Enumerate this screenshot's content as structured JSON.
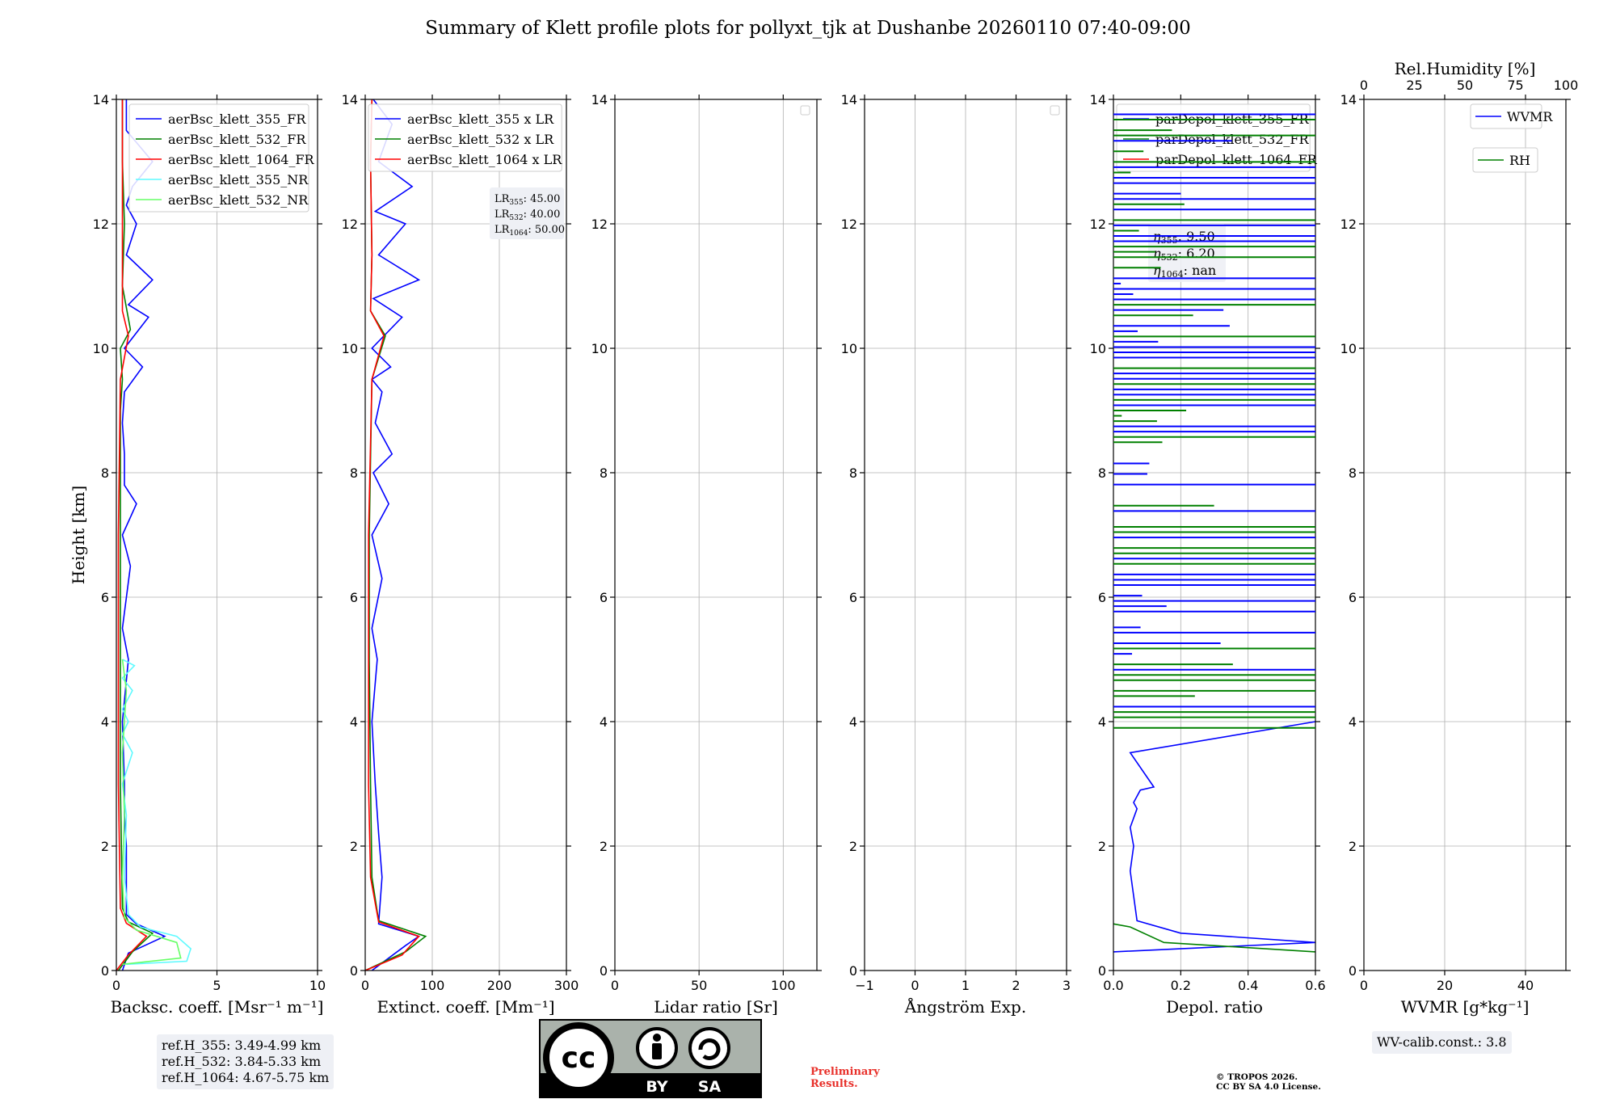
{
  "title": "Summary of Klett profile plots for pollyxt_tjk at Dushanbe 20260110 07:40-09:00",
  "y_label": "Height [km]",
  "y_ticks": [
    "0",
    "2",
    "4",
    "6",
    "8",
    "10",
    "12",
    "14"
  ],
  "panels": [
    {
      "xlabel": "Backsc. coeff. [Msr⁻¹ m⁻¹]",
      "xlim": [
        0,
        10
      ],
      "ticks": [
        "0",
        "5",
        "10"
      ],
      "tick_values": [
        0,
        5,
        10
      ],
      "legend": [
        {
          "label": "aerBsc_klett_355_FR",
          "color": "#0000ff"
        },
        {
          "label": "aerBsc_klett_532_FR",
          "color": "#008000"
        },
        {
          "label": "aerBsc_klett_1064_FR",
          "color": "#ff0000"
        },
        {
          "label": "aerBsc_klett_355_NR",
          "color": "#5ffaff"
        },
        {
          "label": "aerBsc_klett_532_NR",
          "color": "#66ff66"
        }
      ]
    },
    {
      "xlabel": "Extinct. coeff. [Mm⁻¹]",
      "xlim": [
        0,
        300
      ],
      "ticks": [
        "0",
        "100",
        "200",
        "300"
      ],
      "tick_values": [
        0,
        100,
        200,
        300
      ],
      "legend": [
        {
          "label": "aerBsc_klett_355 x LR",
          "color": "#0000ff"
        },
        {
          "label": "aerBsc_klett_532 x LR",
          "color": "#008000"
        },
        {
          "label": "aerBsc_klett_1064 x LR",
          "color": "#ff0000"
        }
      ],
      "lr_box": [
        {
          "base": "LR",
          "sub": "355",
          "value": ": 45.00"
        },
        {
          "base": "LR",
          "sub": "532",
          "value": ": 40.00"
        },
        {
          "base": "LR",
          "sub": "1064",
          "value": ": 50.00"
        }
      ]
    },
    {
      "xlabel": "Lidar ratio [Sr]",
      "xlim": [
        0,
        120
      ],
      "ticks": [
        "0",
        "50",
        "100"
      ],
      "tick_values": [
        0,
        50,
        100
      ],
      "legend": []
    },
    {
      "xlabel": "Ångström Exp.",
      "xlim": [
        -1,
        3
      ],
      "ticks": [
        "−1",
        "0",
        "1",
        "2",
        "3"
      ],
      "tick_values": [
        -1,
        0,
        1,
        2,
        3
      ],
      "legend": []
    },
    {
      "xlabel": "Depol. ratio",
      "xlim": [
        0,
        0.6
      ],
      "ticks": [
        "0.0",
        "0.2",
        "0.4",
        "0.6"
      ],
      "tick_values": [
        0,
        0.2,
        0.4,
        0.6
      ],
      "legend": [
        {
          "label": "parDepol_klett_355_FR",
          "color": "#0000ff"
        },
        {
          "label": "parDepol_klett_532_FR",
          "color": "#008000"
        },
        {
          "label": "parDepol_klett_1064_FR",
          "color": "#ff0000"
        }
      ],
      "eta_box": [
        {
          "sub": "355",
          "value": ": 9.50"
        },
        {
          "sub": "532",
          "value": ": 6.20"
        },
        {
          "sub": "1064",
          "value": ": nan"
        }
      ]
    },
    {
      "xlabel": "WVMR [g*kg⁻¹]",
      "xlim": [
        0,
        50
      ],
      "ticks": [
        "0",
        "20",
        "40"
      ],
      "tick_values": [
        0,
        20,
        40
      ],
      "legend": [
        {
          "label": "WVMR",
          "color": "#0000ff"
        },
        {
          "label": "RH",
          "color": "#008000"
        }
      ],
      "top_axis": {
        "label": "Rel.Humidity [%]",
        "ticks": [
          "0",
          "25",
          "50",
          "75",
          "100"
        ],
        "tick_values": [
          0,
          25,
          50,
          75,
          100
        ]
      }
    }
  ],
  "ref_heights": [
    "ref.H_355: 3.49-4.99 km",
    "ref.H_532: 3.84-5.33 km",
    "ref.H_1064: 4.67-5.75 km"
  ],
  "wv_calib": "WV-calib.const.: 3.8",
  "license_logo": {
    "badge": "cc",
    "by": "BY",
    "sa": "SA"
  },
  "preliminary": [
    "Preliminary",
    "Results."
  ],
  "copyright": [
    "© TROPOS 2026.",
    "CC BY SA 4.0 License."
  ],
  "chart_data": [
    {
      "type": "line",
      "panel": "Backscatter",
      "ylim": [
        0,
        14
      ],
      "xlim": [
        0,
        10
      ],
      "series": [
        {
          "name": "aerBsc_klett_355_FR",
          "x": [
            0.3,
            0.6,
            2.4,
            1.0,
            0.5,
            0.5,
            0.5,
            0.4,
            0.4,
            0.3,
            0.6,
            0.3,
            0.7,
            0.3,
            1.0,
            0.4,
            0.4,
            0.3,
            0.4,
            1.3,
            0.4,
            1.6,
            0.6,
            1.8,
            0.5,
            1.0,
            0.5,
            0.8,
            1.8,
            0.5,
            0.5
          ],
          "y": [
            0,
            0.28,
            0.55,
            0.75,
            0.9,
            1.5,
            2,
            2.5,
            3,
            4,
            5,
            5.5,
            6.5,
            7,
            7.5,
            7.8,
            8.3,
            8.8,
            9.3,
            9.7,
            10,
            10.5,
            10.7,
            11.1,
            11.5,
            12.0,
            12.3,
            12.6,
            13.0,
            13.5,
            14
          ]
        },
        {
          "name": "aerBsc_klett_532_FR",
          "x": [
            0.1,
            0.8,
            1.8,
            0.6,
            0.3,
            0.2,
            0.2,
            0.2,
            0.2,
            0.3,
            0.2,
            0.7,
            0.3,
            0.4,
            0.3,
            0.3
          ],
          "y": [
            0,
            0.3,
            0.6,
            0.78,
            1,
            3,
            5,
            7,
            9,
            9.5,
            10,
            10.3,
            11,
            12,
            13,
            14
          ]
        },
        {
          "name": "aerBsc_klett_1064_FR",
          "x": [
            0.0,
            0.6,
            1.5,
            0.5,
            0.2,
            0.1,
            0.1,
            0.1,
            0.2,
            0.6,
            0.3,
            0.3,
            0.3,
            0.3
          ],
          "y": [
            0,
            0.25,
            0.55,
            0.76,
            1,
            3,
            5,
            7,
            9.5,
            10.2,
            10.6,
            11.5,
            13,
            14
          ]
        },
        {
          "name": "aerBsc_klett_355_NR",
          "x": [
            0.5,
            3.5,
            3.7,
            3.0,
            1.2,
            0.6,
            0.4,
            0.5,
            0.3,
            0.8,
            0.3,
            0.6,
            0.3,
            0.8,
            0.3,
            0.9,
            0.3
          ],
          "y": [
            0.1,
            0.15,
            0.35,
            0.55,
            0.7,
            0.9,
            1.5,
            2.5,
            3,
            3.5,
            3.8,
            4.0,
            4.2,
            4.5,
            4.7,
            4.9,
            5.0
          ]
        },
        {
          "name": "aerBsc_klett_532_NR",
          "x": [
            0.3,
            3.2,
            3.0,
            1.0,
            0.4,
            0.3,
            0.4,
            0.3,
            0.5,
            0.3
          ],
          "y": [
            0.1,
            0.2,
            0.45,
            0.65,
            0.85,
            1.5,
            2.5,
            3.5,
            4.5,
            5.0
          ]
        }
      ]
    },
    {
      "type": "line",
      "panel": "Extinction",
      "ylim": [
        0,
        14
      ],
      "xlim": [
        0,
        300
      ],
      "series": [
        {
          "name": "aerBsc_klett_355 x LR",
          "x": [
            10,
            60,
            80,
            20,
            25,
            20,
            15,
            10,
            18,
            10,
            25,
            10,
            35,
            12,
            40,
            15,
            25,
            10,
            38,
            10,
            55,
            12,
            80,
            20,
            60,
            15,
            70,
            20,
            40,
            12
          ],
          "y": [
            0,
            0.4,
            0.55,
            0.75,
            1.5,
            2.2,
            3,
            4,
            5,
            5.5,
            6.3,
            7,
            7.5,
            8,
            8.3,
            8.8,
            9.3,
            9.5,
            9.7,
            10,
            10.5,
            10.8,
            11.1,
            11.5,
            12,
            12.2,
            12.6,
            13,
            13.6,
            14
          ]
        },
        {
          "name": "aerBsc_klett_532 x LR",
          "x": [
            0,
            60,
            90,
            20,
            10,
            8,
            6,
            6,
            10,
            30,
            8,
            10,
            8,
            10
          ],
          "y": [
            0,
            0.3,
            0.55,
            0.8,
            1.5,
            3,
            5,
            7,
            9.5,
            10.2,
            10.6,
            11.5,
            13,
            14
          ]
        },
        {
          "name": "aerBsc_klett_1064 x LR",
          "x": [
            0,
            55,
            80,
            20,
            8,
            5,
            5,
            5,
            10,
            28,
            8,
            10,
            8,
            10
          ],
          "y": [
            0,
            0.25,
            0.55,
            0.78,
            1.5,
            3,
            5,
            7,
            9.5,
            10.2,
            10.6,
            11.5,
            13,
            14
          ]
        }
      ]
    },
    {
      "type": "line",
      "panel": "Lidar ratio",
      "xlim": [
        0,
        120
      ],
      "ylim": [
        0,
        14
      ],
      "series": []
    },
    {
      "type": "line",
      "panel": "Angstrom",
      "xlim": [
        -1,
        3
      ],
      "ylim": [
        0,
        14
      ],
      "series": []
    },
    {
      "type": "line",
      "panel": "Depolarization",
      "ylim": [
        0,
        14
      ],
      "xlim": [
        0,
        0.6
      ],
      "series": [
        {
          "name": "parDepol_klett_355_FR",
          "x": [
            0.0,
            0.6,
            0.2,
            0.07,
            0.06,
            0.05,
            0.06,
            0.05,
            0.07,
            0.06,
            0.08,
            0.12,
            0.05,
            0.6
          ],
          "y": [
            0.3,
            0.45,
            0.6,
            0.8,
            1.2,
            1.6,
            2.0,
            2.3,
            2.6,
            2.7,
            2.9,
            2.95,
            3.5,
            4.0
          ]
        },
        {
          "name": "parDepol_klett_532_FR",
          "x": [
            0.0,
            0.05,
            0.15,
            0.6
          ],
          "y": [
            0.75,
            0.7,
            0.45,
            0.3
          ]
        },
        {
          "name": "parDepol_klett_1064_FR",
          "x": [],
          "y": []
        }
      ]
    },
    {
      "type": "line",
      "panel": "WVMR",
      "xlim": [
        0,
        50
      ],
      "ylim": [
        0,
        14
      ],
      "top_xlim": [
        0,
        100
      ],
      "series": []
    }
  ]
}
